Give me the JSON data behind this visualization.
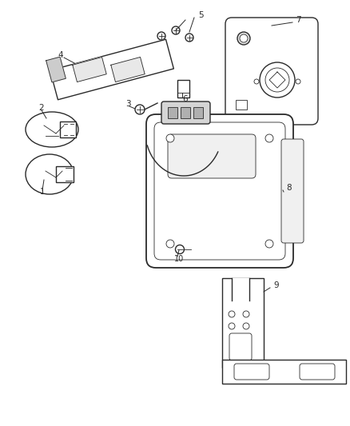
{
  "bg_color": "#ffffff",
  "lc": "#2a2a2a",
  "lw": 1.0,
  "thin": 0.6,
  "figsize": [
    4.38,
    5.33
  ],
  "dpi": 100,
  "label_fs": 7.5
}
